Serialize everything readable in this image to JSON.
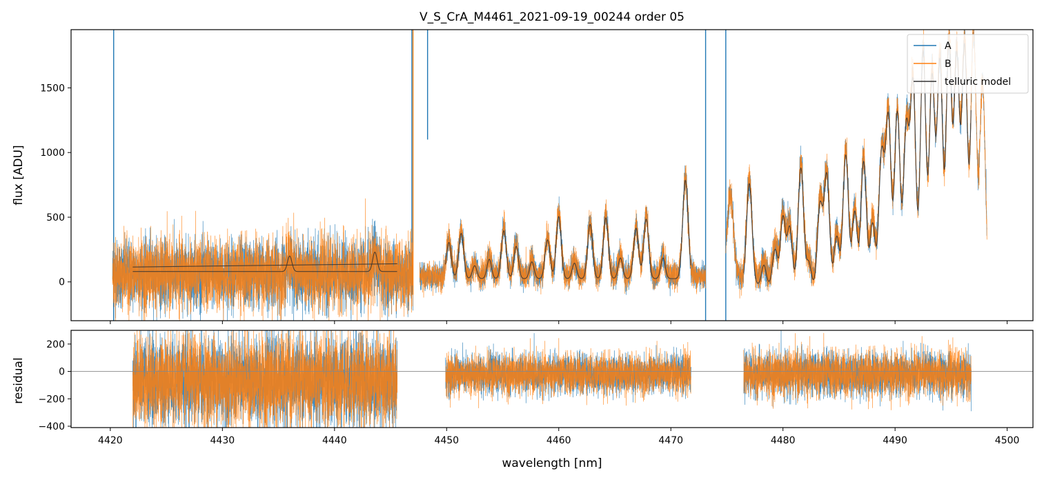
{
  "chart_data": [
    {
      "id": "flux_panel",
      "type": "line",
      "title": "V_S_CrA_M4461_2021-09-19_00244  order 05",
      "xlabel": "",
      "ylabel": "flux [ADU]",
      "xlim": [
        4416.5,
        4502.3
      ],
      "ylim": [
        -300,
        1950
      ],
      "xticks": [
        4420,
        4430,
        4440,
        4450,
        4460,
        4470,
        4480,
        4490,
        4500
      ],
      "yticks": [
        0,
        500,
        1000,
        1500
      ],
      "grid": false,
      "legend": {
        "position": "top-right",
        "entries": [
          "A",
          "B",
          "telluric model"
        ]
      },
      "series": [
        {
          "name": "A",
          "color": "#1f77b4"
        },
        {
          "name": "B",
          "color": "#ff7f0e"
        },
        {
          "name": "telluric model",
          "color": "#333333"
        }
      ],
      "segments": [
        {
          "x_range": [
            4420.2,
            4447.0
          ],
          "continuum": 20,
          "noise": 130,
          "model_x_range": [
            4422.0,
            4445.6
          ],
          "model_level": 80,
          "model_upper_line": {
            "x": [
              4422.0,
              4445.6
            ],
            "y": [
              115,
              140
            ]
          },
          "peaks": [
            {
              "x": 4436.0,
              "height": 120,
              "width": 0.2
            },
            {
              "x": 4443.6,
              "height": 150,
              "width": 0.2
            }
          ]
        },
        {
          "x_range": [
            4447.6,
            4473.1
          ],
          "continuum": 30,
          "noise": 50,
          "model_x_range": [
            4449.9,
            4471.8
          ],
          "model_level": 25,
          "peaks": [
            {
              "x": 4450.2,
              "height": 280,
              "width": 0.22
            },
            {
              "x": 4451.3,
              "height": 350,
              "width": 0.22
            },
            {
              "x": 4452.5,
              "height": 100,
              "width": 0.2
            },
            {
              "x": 4453.8,
              "height": 150,
              "width": 0.2
            },
            {
              "x": 4455.1,
              "height": 370,
              "width": 0.22
            },
            {
              "x": 4456.2,
              "height": 250,
              "width": 0.2
            },
            {
              "x": 4457.6,
              "height": 130,
              "width": 0.2
            },
            {
              "x": 4459.0,
              "height": 300,
              "width": 0.22
            },
            {
              "x": 4460.0,
              "height": 480,
              "width": 0.22
            },
            {
              "x": 4461.4,
              "height": 120,
              "width": 0.2
            },
            {
              "x": 4462.8,
              "height": 420,
              "width": 0.22
            },
            {
              "x": 4464.2,
              "height": 470,
              "width": 0.22
            },
            {
              "x": 4465.5,
              "height": 160,
              "width": 0.2
            },
            {
              "x": 4466.9,
              "height": 390,
              "width": 0.22
            },
            {
              "x": 4467.8,
              "height": 460,
              "width": 0.22
            },
            {
              "x": 4469.3,
              "height": 160,
              "width": 0.2
            },
            {
              "x": 4471.3,
              "height": 760,
              "width": 0.24
            }
          ]
        },
        {
          "x_range": [
            4474.9,
            4498.2
          ],
          "continuum": 30,
          "noise": 55,
          "model_x_range": [
            4476.5,
            4496.8
          ],
          "model_level": -20,
          "peaks": [
            {
              "x": 4475.3,
              "height": 650,
              "width": 0.3
            },
            {
              "x": 4477.0,
              "height": 780,
              "width": 0.24
            },
            {
              "x": 4478.3,
              "height": 150,
              "width": 0.2
            },
            {
              "x": 4479.3,
              "height": 270,
              "width": 0.22
            },
            {
              "x": 4480.0,
              "height": 520,
              "width": 0.22
            },
            {
              "x": 4480.6,
              "height": 440,
              "width": 0.22
            },
            {
              "x": 4481.6,
              "height": 900,
              "width": 0.24
            },
            {
              "x": 4482.3,
              "height": 170,
              "width": 0.2
            },
            {
              "x": 4483.3,
              "height": 600,
              "width": 0.22
            },
            {
              "x": 4483.9,
              "height": 850,
              "width": 0.24
            },
            {
              "x": 4484.8,
              "height": 370,
              "width": 0.22
            },
            {
              "x": 4485.6,
              "height": 1000,
              "width": 0.24
            },
            {
              "x": 4486.4,
              "height": 560,
              "width": 0.22
            },
            {
              "x": 4487.2,
              "height": 950,
              "width": 0.24
            },
            {
              "x": 4488.0,
              "height": 470,
              "width": 0.22
            },
            {
              "x": 4488.8,
              "height": 1000,
              "width": 0.24
            },
            {
              "x": 4489.4,
              "height": 1280,
              "width": 0.24
            },
            {
              "x": 4490.2,
              "height": 1330,
              "width": 0.24
            },
            {
              "x": 4491.0,
              "height": 1200,
              "width": 0.24
            },
            {
              "x": 4491.6,
              "height": 1540,
              "width": 0.24
            },
            {
              "x": 4492.5,
              "height": 1800,
              "width": 0.24
            },
            {
              "x": 4493.3,
              "height": 1600,
              "width": 0.24
            },
            {
              "x": 4494.0,
              "height": 1720,
              "width": 0.24
            },
            {
              "x": 4494.8,
              "height": 1850,
              "width": 0.24
            },
            {
              "x": 4495.5,
              "height": 1750,
              "width": 0.24
            },
            {
              "x": 4496.2,
              "height": 1830,
              "width": 0.24
            },
            {
              "x": 4497.0,
              "height": 1900,
              "width": 0.24
            },
            {
              "x": 4497.8,
              "height": 1500,
              "width": 0.24
            }
          ]
        }
      ],
      "spikes": [
        {
          "x": 4420.3,
          "series": "A",
          "y": [
            -300,
            1950
          ]
        },
        {
          "x": 4446.9,
          "series": "A",
          "y": [
            -100,
            1950
          ]
        },
        {
          "x": 4447.0,
          "series": "B",
          "y": [
            -100,
            1950
          ]
        },
        {
          "x": 4448.3,
          "series": "A",
          "y": [
            1100,
            1950
          ]
        },
        {
          "x": 4473.1,
          "series": "A",
          "y": [
            -300,
            1950
          ]
        },
        {
          "x": 4474.9,
          "series": "A",
          "y": [
            -300,
            1950
          ]
        }
      ]
    },
    {
      "id": "residual_panel",
      "type": "line",
      "title": "",
      "xlabel": "wavelength [nm]",
      "ylabel": "residual",
      "xlim": [
        4416.5,
        4502.3
      ],
      "ylim": [
        -410,
        300
      ],
      "xticks": [
        4420,
        4430,
        4440,
        4450,
        4460,
        4470,
        4480,
        4490,
        4500
      ],
      "yticks": [
        -400,
        -200,
        0,
        200
      ],
      "grid": false,
      "zero_line": {
        "y": 0,
        "color": "#888888"
      },
      "series": [
        {
          "name": "A",
          "color": "#1f77b4"
        },
        {
          "name": "B",
          "color": "#ff7f0e"
        }
      ],
      "segments": [
        {
          "x_range": [
            4422.0,
            4445.6
          ],
          "center": -70,
          "noise": 160
        },
        {
          "x_range": [
            4449.9,
            4471.8
          ],
          "center": -20,
          "noise": 70
        },
        {
          "x_range": [
            4476.5,
            4496.8
          ],
          "center": -20,
          "noise": 80
        }
      ]
    }
  ]
}
